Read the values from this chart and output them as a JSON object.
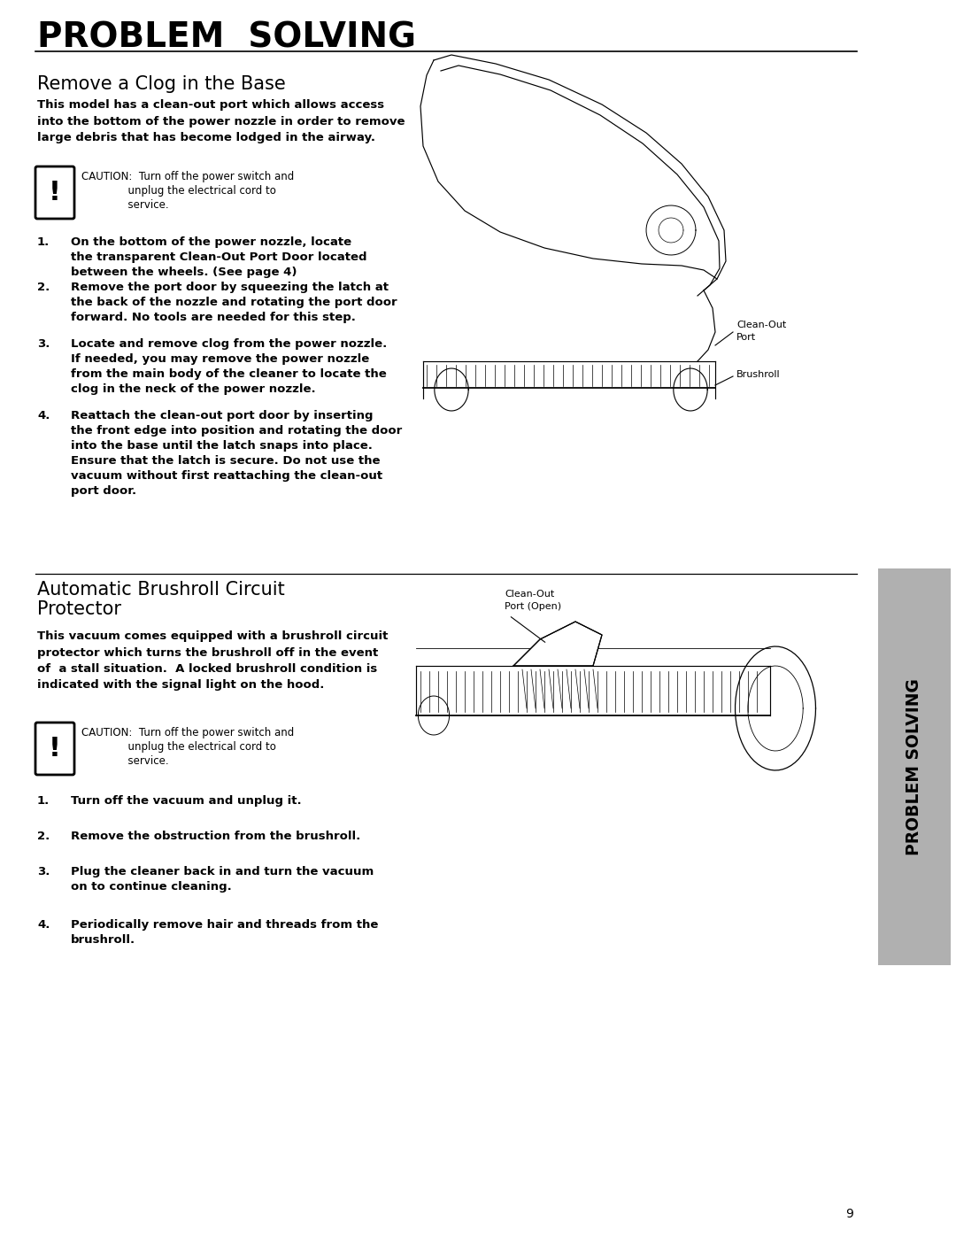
{
  "page_title": "PROBLEM  SOLVING",
  "section1_title": "Remove a Clog in the Base",
  "section1_intro": "This model has a clean-out port which allows access\ninto the bottom of the power nozzle in order to remove\nlarge debris that has become lodged in the airway.",
  "caution1_line1": "CAUTION:  Turn off the power switch and",
  "caution1_line2": "              unplug the electrical cord to",
  "caution1_line3": "              service.",
  "steps_section1": [
    [
      "On the bottom of the power nozzle, locate",
      "the transparent Clean-Out Port Door located",
      "between the wheels. (See page 4)"
    ],
    [
      "Remove the port door by squeezing the latch at",
      "the back of the nozzle and rotating the port door",
      "forward. No tools are needed for this step."
    ],
    [
      "Locate and remove clog from the power nozzle.",
      "If needed, you may remove the power nozzle",
      "from the main body of the cleaner to locate the",
      "clog in the neck of the power nozzle."
    ],
    [
      "Reattach the clean-out port door by inserting",
      "the front edge into position and rotating the door",
      "into the base until the latch snaps into place.",
      "Ensure that the latch is secure. Do not use the",
      "vacuum without first reattaching the clean-out",
      "port door."
    ]
  ],
  "label_cleanout_port_line1": "Clean-Out",
  "label_cleanout_port_line2": "Port",
  "label_brushroll": "Brushroll",
  "section2_title_line1": "Automatic Brushroll Circuit",
  "section2_title_line2": "Protector",
  "section2_intro": "This vacuum comes equipped with a brushroll circuit\nprotector which turns the brushroll off in the event\nof  a stall situation.  A locked brushroll condition is\nindicated with the signal light on the hood.",
  "caution2_line1": "CAUTION:  Turn off the power switch and",
  "caution2_line2": "              unplug the electrical cord to",
  "caution2_line3": "              service.",
  "steps_section2": [
    [
      "Turn off the vacuum and unplug it."
    ],
    [
      "Remove the obstruction from the brushroll."
    ],
    [
      "Plug the cleaner back in and turn the vacuum",
      "on to continue cleaning."
    ],
    [
      "Periodically remove hair and threads from the",
      "brushroll."
    ]
  ],
  "label_cleanout_port_open_line1": "Clean-Out",
  "label_cleanout_port_open_line2": "Port (Open)",
  "sidebar_text": "PROBLEM SOLVING",
  "page_number": "9",
  "bg_color": "#ffffff",
  "text_color": "#000000",
  "sidebar_bg": "#b0b0b0"
}
